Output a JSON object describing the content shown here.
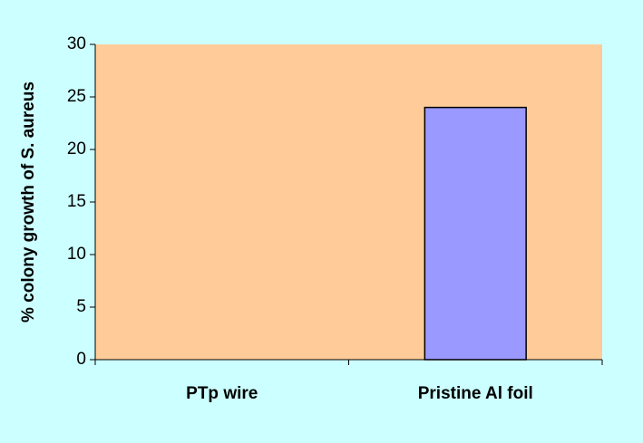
{
  "chart_data": {
    "type": "bar",
    "y_label": "% colony growth of S. aureus",
    "categories": [
      "PTp wire",
      "Pristine Al foil"
    ],
    "values": [
      0,
      24
    ],
    "color": "#9999ff",
    "plot_background": "#ffcc99",
    "ylim": [
      0,
      30
    ],
    "yticks": [
      0,
      5,
      10,
      15,
      20,
      25,
      30
    ]
  }
}
